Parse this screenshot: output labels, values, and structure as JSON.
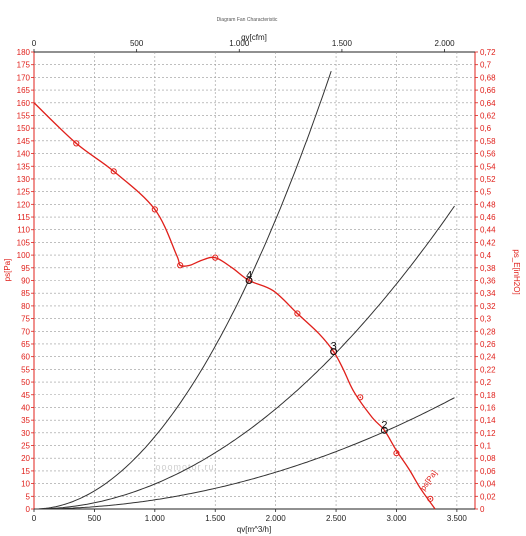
{
  "chart_data": {
    "type": "line",
    "title": "Diagram Fan Characteristic",
    "watermark": "ooomotor.ru",
    "x_bottom": {
      "label": "qv[m^3/h]",
      "range": [
        0,
        3500
      ],
      "ticks": [
        "0",
        "500",
        "1.000",
        "1.500",
        "2.000",
        "2.500",
        "3.000",
        "3.500"
      ]
    },
    "x_top": {
      "label": "qv[cfm]",
      "range": [
        0,
        2060
      ],
      "ticks": [
        "0",
        "500",
        "1.000",
        "1.500",
        "2.000"
      ]
    },
    "y_left": {
      "label": "ps[Pa]",
      "range": [
        0,
        180
      ],
      "ticks": [
        "0",
        "5",
        "10",
        "15",
        "20",
        "25",
        "30",
        "35",
        "40",
        "45",
        "50",
        "55",
        "60",
        "65",
        "70",
        "75",
        "80",
        "85",
        "90",
        "95",
        "100",
        "105",
        "110",
        "115",
        "120",
        "125",
        "130",
        "135",
        "140",
        "145",
        "150",
        "155",
        "160",
        "165",
        "170",
        "175",
        "180"
      ]
    },
    "y_right": {
      "label": "ps_E[inH2O]",
      "range": [
        0,
        0.72
      ],
      "ticks": [
        "0",
        "0,02",
        "0,04",
        "0,06",
        "0,08",
        "0,1",
        "0,12",
        "0,14",
        "0,16",
        "0,18",
        "0,2",
        "0,22",
        "0,24",
        "0,26",
        "0,28",
        "0,3",
        "0,32",
        "0,34",
        "0,36",
        "0,38",
        "0,4",
        "0,42",
        "0,44",
        "0,46",
        "0,48",
        "0,5",
        "0,52",
        "0,54",
        "0,56",
        "0,58",
        "0,6",
        "0,62",
        "0,64",
        "0,66",
        "0,68",
        "0,7",
        "0,72"
      ]
    },
    "grid": true,
    "fan_curve": {
      "color": "#e0201b",
      "points": [
        [
          0,
          160
        ],
        [
          350,
          144
        ],
        [
          660,
          133
        ],
        [
          1000,
          118
        ],
        [
          1180,
          100
        ],
        [
          1210,
          96
        ],
        [
          1290,
          96
        ],
        [
          1390,
          98
        ],
        [
          1500,
          99
        ],
        [
          1640,
          95
        ],
        [
          1780,
          90
        ],
        [
          1980,
          86
        ],
        [
          2180,
          77
        ],
        [
          2360,
          69
        ],
        [
          2480,
          62
        ],
        [
          2560,
          55
        ],
        [
          2650,
          46
        ],
        [
          2800,
          36
        ],
        [
          2900,
          31
        ],
        [
          3000,
          23
        ],
        [
          3100,
          16
        ],
        [
          3200,
          8
        ],
        [
          3320,
          0
        ]
      ],
      "markers": [
        [
          350,
          144
        ],
        [
          660,
          133
        ],
        [
          1000,
          118
        ],
        [
          1210,
          96
        ],
        [
          1500,
          99
        ],
        [
          1780,
          90
        ],
        [
          2180,
          77
        ],
        [
          2480,
          62
        ],
        [
          2700,
          44
        ],
        [
          3000,
          22
        ],
        [
          3280,
          4
        ]
      ],
      "end_label": "ps[Pa]"
    },
    "system_curves": [
      {
        "k": 2.85e-05,
        "x_max": 2470,
        "color": "#333333"
      },
      {
        "k": 9.85e-06,
        "x_max": 3480,
        "color": "#333333"
      },
      {
        "k": 3.62e-06,
        "x_max": 3480,
        "color": "#333333"
      }
    ],
    "operating_points": [
      {
        "label": "4",
        "x": 1780,
        "y": 90
      },
      {
        "label": "3",
        "x": 2480,
        "y": 62
      },
      {
        "label": "2",
        "x": 2900,
        "y": 31
      }
    ]
  }
}
